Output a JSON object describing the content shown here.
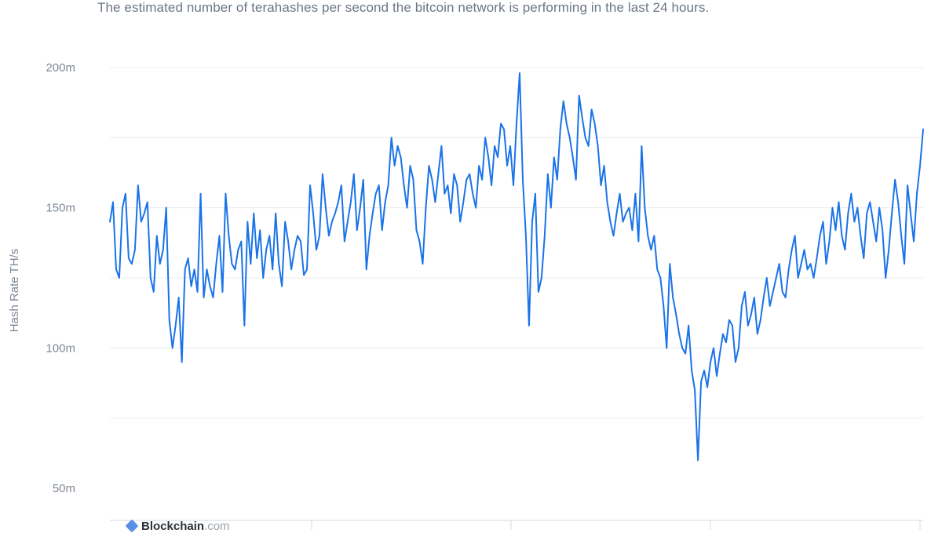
{
  "subtitle": "The estimated number of terahashes per second the bitcoin network is performing in the last 24 hours.",
  "watermark": {
    "brand": "Blockchain",
    "domain": ".com"
  },
  "colors": {
    "line": "#1a73e8",
    "grid": "#e9ecef",
    "text": "#7d8894"
  },
  "chart_data": {
    "type": "line",
    "title": "",
    "subtitle": "The estimated number of terahashes per second the bitcoin network is performing in the last 24 hours.",
    "xlabel": "",
    "ylabel": "Hash Rate TH/s",
    "ylim": [
      45,
      200
    ],
    "yticks": [
      50,
      100,
      150,
      200
    ],
    "ytick_labels": [
      "50m",
      "100m",
      "150m",
      "200m"
    ],
    "grid": true,
    "legend": "none",
    "series": [
      {
        "values": [
          145,
          152,
          128,
          125,
          150,
          155,
          132,
          130,
          135,
          158,
          145,
          148,
          152,
          125,
          120,
          140,
          130,
          135,
          150,
          110,
          100,
          108,
          118,
          95,
          128,
          132,
          122,
          128,
          120,
          155,
          118,
          128,
          122,
          118,
          130,
          140,
          120,
          155,
          140,
          130,
          128,
          135,
          138,
          108,
          145,
          130,
          148,
          132,
          142,
          125,
          135,
          140,
          128,
          148,
          130,
          122,
          145,
          138,
          128,
          135,
          140,
          138,
          126,
          128,
          158,
          148,
          135,
          140,
          162,
          150,
          140,
          145,
          148,
          152,
          158,
          138,
          145,
          152,
          162,
          142,
          150,
          160,
          128,
          140,
          148,
          155,
          158,
          142,
          152,
          158,
          175,
          165,
          172,
          168,
          158,
          150,
          165,
          160,
          142,
          138,
          130,
          150,
          165,
          160,
          152,
          162,
          172,
          155,
          158,
          148,
          162,
          158,
          145,
          152,
          160,
          162,
          155,
          150,
          165,
          160,
          175,
          168,
          158,
          172,
          168,
          180,
          178,
          165,
          172,
          158,
          180,
          198,
          160,
          140,
          108,
          145,
          155,
          120,
          125,
          140,
          162,
          150,
          168,
          160,
          178,
          188,
          180,
          175,
          168,
          160,
          190,
          182,
          175,
          172,
          185,
          180,
          172,
          158,
          165,
          152,
          145,
          140,
          148,
          155,
          145,
          148,
          150,
          142,
          155,
          138,
          172,
          150,
          140,
          135,
          140,
          128,
          125,
          115,
          100,
          130,
          118,
          112,
          105,
          100,
          98,
          108,
          92,
          85,
          60,
          88,
          92,
          86,
          95,
          100,
          90,
          98,
          105,
          102,
          110,
          108,
          95,
          100,
          115,
          120,
          108,
          112,
          118,
          105,
          110,
          118,
          125,
          115,
          120,
          125,
          130,
          120,
          118,
          128,
          135,
          140,
          125,
          130,
          135,
          128,
          130,
          125,
          132,
          140,
          145,
          130,
          138,
          150,
          142,
          152,
          140,
          135,
          148,
          155,
          145,
          150,
          140,
          132,
          148,
          152,
          145,
          138,
          150,
          142,
          125,
          135,
          148,
          160,
          152,
          140,
          130,
          158,
          148,
          138,
          155,
          165,
          178
        ]
      }
    ]
  }
}
